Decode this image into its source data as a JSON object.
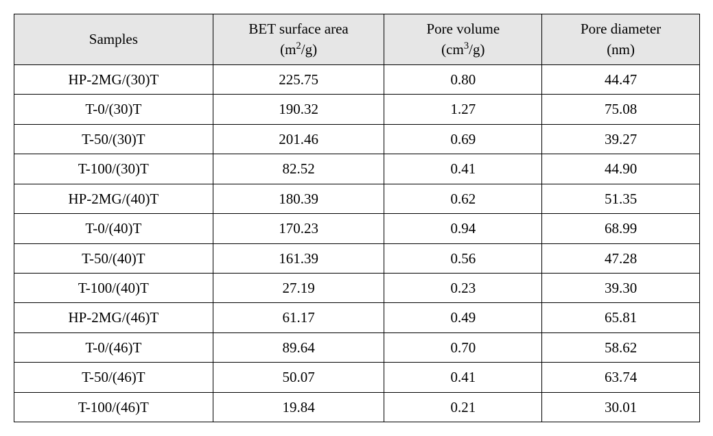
{
  "table": {
    "type": "table",
    "background_color": "#ffffff",
    "header_bg_color": "#e6e6e6",
    "border_color": "#000000",
    "font_family": "Times New Roman",
    "header_fontsize_pt": 16,
    "cell_fontsize_pt": 16,
    "columns": [
      {
        "key": "samples",
        "label_html": "Samples",
        "width_pct": 29,
        "align": "center"
      },
      {
        "key": "bet",
        "label_html": "BET surface area<br>(m<sup>2</sup>/g)",
        "width_pct": 25,
        "align": "center"
      },
      {
        "key": "pv",
        "label_html": "Pore volume<br>(cm<sup>3</sup>/g)",
        "width_pct": 23,
        "align": "center"
      },
      {
        "key": "pd",
        "label_html": "Pore diameter<br>(nm)",
        "width_pct": 23,
        "align": "center"
      }
    ],
    "rows": [
      {
        "samples": "HP-2MG/(30)T",
        "bet": "225.75",
        "pv": "0.80",
        "pd": "44.47"
      },
      {
        "samples": "T-0/(30)T",
        "bet": "190.32",
        "pv": "1.27",
        "pd": "75.08"
      },
      {
        "samples": "T-50/(30)T",
        "bet": "201.46",
        "pv": "0.69",
        "pd": "39.27"
      },
      {
        "samples": "T-100/(30)T",
        "bet": "82.52",
        "pv": "0.41",
        "pd": "44.90"
      },
      {
        "samples": "HP-2MG/(40)T",
        "bet": "180.39",
        "pv": "0.62",
        "pd": "51.35"
      },
      {
        "samples": "T-0/(40)T",
        "bet": "170.23",
        "pv": "0.94",
        "pd": "68.99"
      },
      {
        "samples": "T-50/(40)T",
        "bet": "161.39",
        "pv": "0.56",
        "pd": "47.28"
      },
      {
        "samples": "T-100/(40)T",
        "bet": "27.19",
        "pv": "0.23",
        "pd": "39.30"
      },
      {
        "samples": "HP-2MG/(46)T",
        "bet": "61.17",
        "pv": "0.49",
        "pd": "65.81"
      },
      {
        "samples": "T-0/(46)T",
        "bet": "89.64",
        "pv": "0.70",
        "pd": "58.62"
      },
      {
        "samples": "T-50/(46)T",
        "bet": "50.07",
        "pv": "0.41",
        "pd": "63.74"
      },
      {
        "samples": "T-100/(46)T",
        "bet": "19.84",
        "pv": "0.21",
        "pd": "30.01"
      }
    ]
  }
}
